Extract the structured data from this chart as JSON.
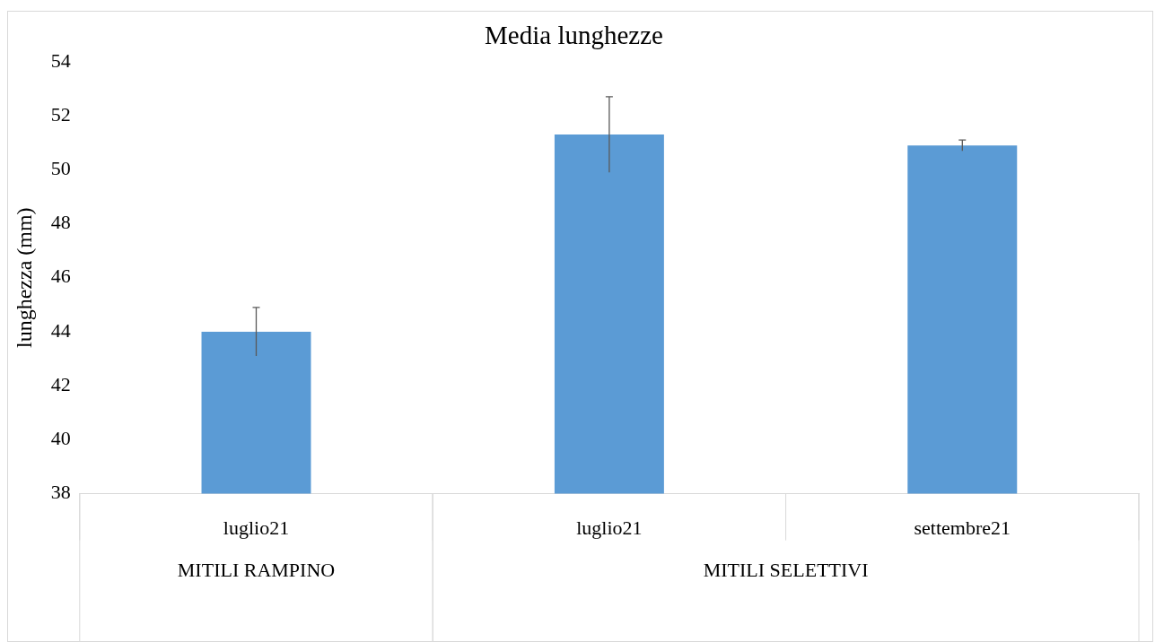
{
  "chart_data": {
    "type": "bar",
    "title": "Media lunghezze",
    "ylabel": "lunghezza (mm)",
    "categories": [
      "luglio21",
      "luglio21",
      "settembre21"
    ],
    "values": [
      44.0,
      51.3,
      50.9
    ],
    "errors": [
      0.9,
      1.4,
      0.2
    ],
    "color": "#5b9bd5",
    "ylim": [
      38,
      54
    ],
    "yticks": [
      38,
      40,
      42,
      44,
      46,
      48,
      50,
      52,
      54
    ],
    "grid": false,
    "legend": false,
    "annotations": [
      "MITILI RAMPINO",
      "MITILI SELETTIVI"
    ]
  }
}
